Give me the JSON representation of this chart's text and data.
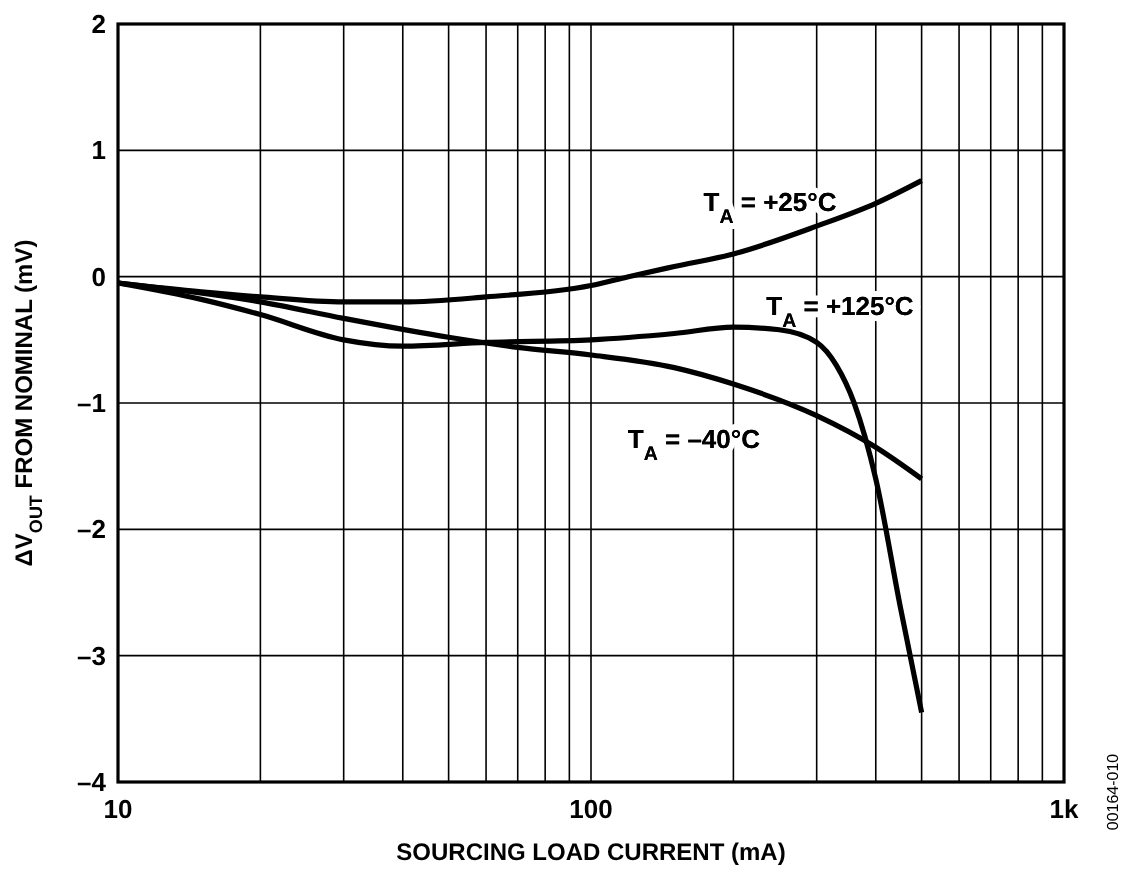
{
  "chart_data": {
    "type": "line",
    "xlabel": "SOURCING LOAD CURRENT (mA)",
    "ylabel": "ΔV$_{OUT}$ FROM NOMINAL (mV)",
    "log": "x",
    "xlim": [
      10,
      1000
    ],
    "ylim": [
      -4,
      2
    ],
    "xticks": [
      10,
      {
        "value": 20,
        "label": null
      },
      {
        "value": 30,
        "label": null
      },
      {
        "value": 40,
        "label": null
      },
      {
        "value": 50,
        "label": null
      },
      {
        "value": 60,
        "label": null
      },
      {
        "value": 70,
        "label": null
      },
      {
        "value": 80,
        "label": null
      },
      {
        "value": 90,
        "label": null
      },
      100,
      {
        "value": 200,
        "label": null
      },
      {
        "value": 300,
        "label": null
      },
      {
        "value": 400,
        "label": null
      },
      {
        "value": 500,
        "label": null
      },
      {
        "value": 600,
        "label": null
      },
      {
        "value": 700,
        "label": null
      },
      {
        "value": 800,
        "label": null
      },
      {
        "value": 900,
        "label": null
      },
      {
        "value": 1000,
        "label": "1k"
      }
    ],
    "yticks": [
      {
        "value": -4,
        "label": "–4"
      },
      {
        "value": -3,
        "label": "–3"
      },
      {
        "value": -2,
        "label": "–2"
      },
      {
        "value": -1,
        "label": "–1"
      },
      0,
      1,
      2
    ],
    "grid": true,
    "marker": "none",
    "line_style": "solid",
    "series": [
      {
        "name": "T$_{A}$ = +25°C",
        "color": "#000000",
        "x": [
          10,
          15,
          20,
          30,
          40,
          60,
          100,
          120,
          150,
          200,
          300,
          400,
          500
        ],
        "values": [
          -0.05,
          -0.12,
          -0.16,
          -0.2,
          -0.2,
          -0.16,
          -0.07,
          0,
          0.08,
          0.18,
          0.4,
          0.58,
          0.76
        ]
      },
      {
        "name": "T$_{A}$ = +125°C",
        "color": "#000000",
        "x": [
          10,
          15,
          20,
          30,
          40,
          60,
          100,
          150,
          200,
          250,
          300,
          330,
          360,
          400,
          450,
          500
        ],
        "values": [
          -0.05,
          -0.18,
          -0.3,
          -0.5,
          -0.55,
          -0.52,
          -0.5,
          -0.45,
          -0.4,
          -0.42,
          -0.52,
          -0.7,
          -1.0,
          -1.6,
          -2.6,
          -3.45
        ]
      },
      {
        "name": "T$_{A}$ = –40°C",
        "color": "#000000",
        "x": [
          10,
          20,
          30,
          50,
          70,
          100,
          150,
          200,
          300,
          400,
          500
        ],
        "values": [
          -0.05,
          -0.2,
          -0.33,
          -0.48,
          -0.56,
          -0.62,
          -0.72,
          -0.85,
          -1.1,
          -1.35,
          -1.6
        ]
      }
    ],
    "annotations": [
      "00164-010"
    ]
  }
}
